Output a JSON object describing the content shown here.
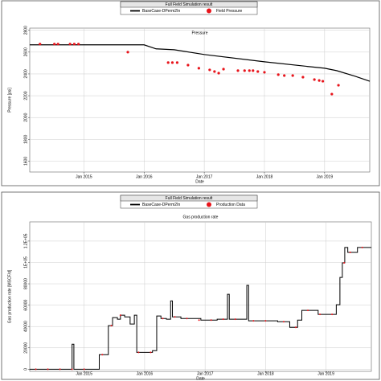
{
  "chart_data": [
    {
      "type": "line",
      "legend_title": "Full Field Simulation result",
      "title": "Pressure",
      "ylabel": "Pressure [psi]",
      "xlabel": "Date",
      "xlim": [
        2014.1,
        2019.75
      ],
      "xticks": [
        {
          "value": 2015,
          "label": "Jan 2015"
        },
        {
          "value": 2016,
          "label": "Jan 2016"
        },
        {
          "value": 2017,
          "label": "Jan 2017"
        },
        {
          "value": 2018,
          "label": "Jan 2018"
        },
        {
          "value": 2019,
          "label": "Jan 2019"
        }
      ],
      "ylim": [
        1500,
        2820
      ],
      "yticks": [
        1600,
        1800,
        2000,
        2200,
        2400,
        2600,
        2800
      ],
      "grid": true,
      "series": [
        {
          "name": "BaseCase-DPerm2In",
          "color": "#000000",
          "mode": "line",
          "step": false,
          "x": [
            2014.1,
            2016.0,
            2016.2,
            2016.5,
            2017.0,
            2018.0,
            2019.0,
            2019.2,
            2019.5,
            2019.75
          ],
          "values": [
            2667,
            2667,
            2630,
            2622,
            2578,
            2511,
            2452,
            2430,
            2380,
            2333
          ]
        },
        {
          "name": "Field Pressure",
          "color": "#e8141b",
          "mode": "markers",
          "x": [
            2014.27,
            2014.51,
            2014.57,
            2014.77,
            2014.84,
            2014.91,
            2015.73,
            2016.4,
            2016.47,
            2016.55,
            2016.73,
            2016.91,
            2017.09,
            2017.17,
            2017.24,
            2017.32,
            2017.56,
            2017.67,
            2017.75,
            2017.81,
            2017.89,
            2018.0,
            2018.23,
            2018.33,
            2018.47,
            2018.64,
            2018.83,
            2018.91,
            2018.97,
            2019.12,
            2019.23
          ],
          "values": [
            2674,
            2674,
            2674,
            2674,
            2674,
            2674,
            2600,
            2504,
            2504,
            2504,
            2481,
            2452,
            2437,
            2422,
            2407,
            2444,
            2430,
            2430,
            2430,
            2430,
            2422,
            2415,
            2393,
            2385,
            2385,
            2370,
            2348,
            2340,
            2333,
            2215,
            2296
          ]
        }
      ]
    },
    {
      "type": "line",
      "legend_title": "Full Field Simulation result",
      "title": "Gas production rate",
      "ylabel": "Gas production rate [MSCF/d]",
      "xlabel": "Date",
      "xlim": [
        2014.1,
        2019.75
      ],
      "xticks": [
        {
          "value": 2015,
          "label": "Jan 2015"
        },
        {
          "value": 2016,
          "label": "Jan 2016"
        },
        {
          "value": 2017,
          "label": "Jan 2017"
        },
        {
          "value": 2018,
          "label": "Jan 2018"
        },
        {
          "value": 2019,
          "label": "Jan 2019"
        }
      ],
      "ylim": [
        -2000,
        138000
      ],
      "yticks": [
        0,
        20000,
        40000,
        60000,
        80000,
        {
          "value": 100000,
          "label": "1E+05"
        },
        {
          "value": 120000,
          "label": "1.2E+05"
        }
      ],
      "grid": true,
      "series": [
        {
          "name": "BaseCase-DPerm2In",
          "color": "#000000",
          "mode": "line",
          "step": true,
          "x": [
            2014.1,
            2014.8,
            2014.83,
            2015.25,
            2015.4,
            2015.47,
            2015.55,
            2015.6,
            2015.67,
            2015.76,
            2015.83,
            2015.87,
            2016.13,
            2016.2,
            2016.27,
            2016.36,
            2016.43,
            2016.46,
            2016.6,
            2016.93,
            2017.2,
            2017.37,
            2017.4,
            2017.69,
            2017.72,
            2018.2,
            2018.4,
            2018.53,
            2018.6,
            2018.87,
            2019.17,
            2019.23,
            2019.27,
            2019.31,
            2019.36,
            2019.52,
            2019.75
          ],
          "values": [
            0,
            23400,
            0,
            13600,
            40800,
            48300,
            46800,
            50600,
            49000,
            42300,
            50600,
            15800,
            17400,
            49800,
            47500,
            46800,
            64000,
            49000,
            47500,
            46000,
            46800,
            70200,
            46800,
            78500,
            45300,
            44500,
            39200,
            46000,
            55100,
            51300,
            60400,
            86000,
            99600,
            114000,
            109400,
            114000,
            114000
          ]
        },
        {
          "name": "Production Data",
          "color": "#e8141b",
          "mode": "markers",
          "x": [
            2014.2,
            2014.4,
            2014.6,
            2014.8,
            2015.0,
            2015.3,
            2015.45,
            2015.6,
            2015.9,
            2016.1,
            2016.3,
            2016.5,
            2016.7,
            2016.9,
            2017.1,
            2017.3,
            2017.5,
            2017.8,
            2018.0,
            2018.3,
            2018.5,
            2018.7,
            2018.9,
            2019.1,
            2019.3,
            2019.4,
            2019.6
          ],
          "values": [
            0,
            0,
            0,
            0,
            0,
            13600,
            40800,
            50600,
            15800,
            15800,
            47500,
            49000,
            47500,
            46000,
            46000,
            46800,
            46800,
            45300,
            45300,
            44500,
            39200,
            55100,
            51300,
            51300,
            99600,
            109400,
            114000
          ]
        }
      ]
    }
  ]
}
